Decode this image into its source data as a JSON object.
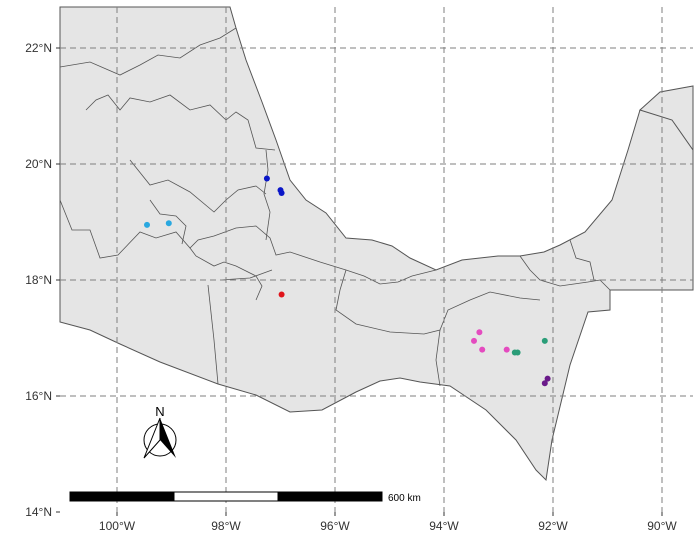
{
  "map": {
    "x_ticks": [
      "100°W",
      "98°W",
      "96°W",
      "94°W",
      "92°W",
      "90°W"
    ],
    "y_ticks": [
      "22°N",
      "20°N",
      "18°N",
      "16°N",
      "14°N"
    ],
    "scale_bar_label": "600 km",
    "north_arrow_label": "N",
    "colors": {
      "land": "#e5e5e5",
      "border": "#555555",
      "grid": "#7f7f7f"
    }
  },
  "chart_data": {
    "type": "scatter",
    "title": "",
    "xlabel": "",
    "ylabel": "",
    "xlim": [
      -101,
      -89.5
    ],
    "ylim": [
      14,
      22.7
    ],
    "series": [
      {
        "color": "#29a8e0",
        "points": [
          [
            -99.45,
            18.95
          ],
          [
            -99.05,
            18.98
          ]
        ]
      },
      {
        "color": "#0a16c8",
        "points": [
          [
            -97.25,
            19.75
          ],
          [
            -97.0,
            19.55
          ],
          [
            -96.98,
            19.5
          ]
        ]
      },
      {
        "color": "#e0141b",
        "points": [
          [
            -96.98,
            17.75
          ]
        ]
      },
      {
        "color": "#e44bbf",
        "points": [
          [
            -93.45,
            16.95
          ],
          [
            -93.35,
            17.1
          ],
          [
            -93.3,
            16.8
          ],
          [
            -92.85,
            16.8
          ]
        ]
      },
      {
        "color": "#2a9d78",
        "points": [
          [
            -92.7,
            16.75
          ],
          [
            -92.65,
            16.75
          ],
          [
            -92.15,
            16.95
          ]
        ]
      },
      {
        "color": "#6a1a8a",
        "points": [
          [
            -92.1,
            16.3
          ],
          [
            -92.15,
            16.22
          ]
        ]
      }
    ]
  }
}
